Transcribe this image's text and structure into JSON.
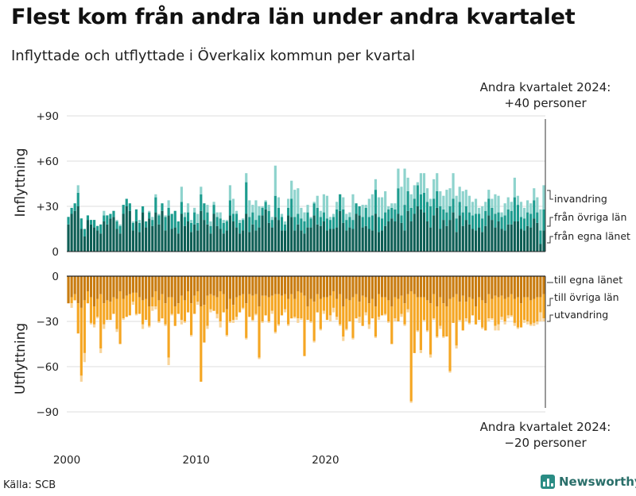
{
  "header": {
    "title": "Flest kom från andra län under andra kvartalet",
    "subtitle": "Inflyttade och utflyttade i Överkalix kommun per kvartal"
  },
  "footer": {
    "source": "Källa: SCB",
    "brand": "Newsworthy"
  },
  "chart_data": {
    "type": "bar",
    "title": "Flest kom från andra län under andra kvartalet",
    "subtitle": "Inflyttade och utflyttade i Överkalix kommun per kvartal",
    "x_tick_labels": [
      "2000",
      "2010",
      "2020"
    ],
    "x_tick_years": [
      2000,
      2010,
      2020
    ],
    "first_year": 2000,
    "quarters_per_year": 4,
    "top_panel": {
      "ylabel": "Inflyttning",
      "ylim": [
        0,
        90
      ],
      "yticks": [
        0,
        30,
        60,
        90
      ],
      "ytick_labels": [
        "0",
        "+30",
        "+60",
        "+90"
      ],
      "annotation_line1": "Andra kvartalet 2024:",
      "annotation_line2": "+40 personer",
      "legend": [
        "invandring",
        "från övriga län",
        "från egna länet"
      ],
      "colors": {
        "egna": "#0e5e55",
        "ovriga": "#1d9c8f",
        "invandring": "#8ed3cd"
      },
      "series": {
        "fran_egna_lanet": [
          18,
          25,
          27,
          30,
          15,
          10,
          21,
          18,
          16,
          14,
          12,
          20,
          18,
          22,
          23,
          15,
          12,
          25,
          30,
          27,
          14,
          20,
          13,
          26,
          16,
          22,
          17,
          26,
          18,
          27,
          14,
          24,
          15,
          16,
          12,
          25,
          17,
          20,
          13,
          18,
          14,
          27,
          21,
          18,
          12,
          25,
          17,
          15,
          12,
          14,
          24,
          20,
          16,
          12,
          14,
          25,
          13,
          18,
          14,
          16,
          24,
          28,
          19,
          16,
          23,
          21,
          14,
          14,
          24,
          23,
          14,
          18,
          14,
          12,
          16,
          16,
          24,
          18,
          17,
          20,
          14,
          15,
          15,
          16,
          27,
          19,
          14,
          16,
          15,
          25,
          24,
          16,
          17,
          15,
          14,
          25,
          13,
          14,
          17,
          20,
          22,
          20,
          25,
          19,
          14,
          27,
          20,
          25,
          30,
          28,
          26,
          20,
          16,
          24,
          29,
          15,
          21,
          17,
          21,
          26,
          13,
          24,
          17,
          21,
          18,
          15,
          14,
          16,
          13,
          17,
          24,
          21,
          16,
          20,
          15,
          14,
          18,
          18,
          20,
          20,
          15,
          14,
          17,
          16,
          22,
          19,
          5,
          14
        ],
        "fran_ovriga_lan": [
          5,
          4,
          5,
          9,
          7,
          5,
          3,
          3,
          5,
          3,
          6,
          4,
          6,
          3,
          4,
          5,
          5,
          6,
          5,
          5,
          5,
          8,
          6,
          4,
          4,
          4,
          4,
          10,
          6,
          5,
          9,
          5,
          10,
          11,
          8,
          8,
          6,
          6,
          6,
          8,
          5,
          11,
          11,
          8,
          5,
          6,
          6,
          7,
          7,
          6,
          10,
          5,
          9,
          7,
          7,
          21,
          10,
          8,
          7,
          8,
          5,
          5,
          8,
          5,
          14,
          8,
          9,
          4,
          5,
          12,
          9,
          7,
          8,
          8,
          10,
          6,
          8,
          11,
          6,
          6,
          8,
          6,
          8,
          12,
          11,
          9,
          7,
          7,
          6,
          7,
          6,
          7,
          12,
          8,
          10,
          16,
          10,
          8,
          9,
          8,
          7,
          8,
          17,
          5,
          17,
          13,
          9,
          10,
          14,
          10,
          13,
          13,
          14,
          11,
          11,
          15,
          7,
          9,
          9,
          9,
          9,
          9,
          9,
          9,
          8,
          9,
          11,
          9,
          9,
          10,
          11,
          8,
          9,
          6,
          8,
          10,
          10,
          9,
          16,
          11,
          8,
          8,
          9,
          9,
          12,
          7,
          9,
          14
        ],
        "invandring": [
          0,
          0,
          0,
          5,
          0,
          0,
          0,
          0,
          0,
          0,
          0,
          3,
          0,
          0,
          0,
          1,
          1,
          0,
          0,
          0,
          1,
          0,
          2,
          0,
          0,
          1,
          2,
          2,
          1,
          0,
          1,
          5,
          0,
          0,
          0,
          10,
          3,
          6,
          2,
          3,
          6,
          5,
          0,
          5,
          3,
          2,
          3,
          4,
          2,
          1,
          10,
          10,
          2,
          2,
          1,
          6,
          11,
          5,
          13,
          6,
          1,
          1,
          4,
          2,
          20,
          7,
          2,
          2,
          6,
          12,
          18,
          17,
          7,
          6,
          5,
          1,
          1,
          8,
          4,
          12,
          15,
          2,
          2,
          5,
          0,
          8,
          4,
          3,
          17,
          0,
          0,
          8,
          2,
          12,
          14,
          7,
          13,
          14,
          14,
          2,
          3,
          4,
          13,
          19,
          24,
          9,
          9,
          9,
          2,
          14,
          13,
          9,
          5,
          13,
          12,
          10,
          9,
          15,
          12,
          17,
          15,
          10,
          14,
          11,
          11,
          9,
          10,
          4,
          8,
          6,
          6,
          6,
          13,
          11,
          3,
          8,
          8,
          6,
          13,
          6,
          10,
          7,
          8,
          7,
          8,
          10,
          14,
          16
        ]
      }
    },
    "bottom_panel": {
      "ylabel": "Utflyttning",
      "ylim": [
        -90,
        0
      ],
      "yticks": [
        0,
        -30,
        -60,
        -90
      ],
      "ytick_labels": [
        "0",
        "−30",
        "−60",
        "−90"
      ],
      "annotation_line1": "Andra kvartalet 2024:",
      "annotation_line2": "−20 personer",
      "legend": [
        "till egna länet",
        "till övriga län",
        "utvandring"
      ],
      "colors": {
        "egna": "#c97c10",
        "ovriga": "#f5a623",
        "utvandring": "#f8d49a"
      },
      "series": {
        "till_egna_lanet": [
          18,
          14,
          12,
          18,
          21,
          16,
          10,
          14,
          20,
          15,
          12,
          18,
          16,
          17,
          14,
          15,
          10,
          15,
          13,
          12,
          11,
          11,
          14,
          16,
          15,
          20,
          14,
          10,
          16,
          12,
          18,
          14,
          14,
          20,
          18,
          13,
          16,
          10,
          18,
          13,
          10,
          20,
          19,
          13,
          12,
          13,
          14,
          10,
          12,
          22,
          15,
          19,
          14,
          13,
          12,
          18,
          12,
          13,
          12,
          20,
          13,
          13,
          14,
          13,
          12,
          12,
          13,
          12,
          15,
          12,
          15,
          10,
          11,
          13,
          20,
          15,
          17,
          12,
          15,
          14,
          14,
          13,
          10,
          15,
          12,
          20,
          15,
          16,
          14,
          12,
          17,
          13,
          14,
          18,
          15,
          20,
          12,
          14,
          14,
          16,
          20,
          14,
          15,
          13,
          18,
          12,
          10,
          12,
          14,
          14,
          14,
          16,
          18,
          12,
          20,
          14,
          18,
          20,
          15,
          14,
          12,
          17,
          13,
          17,
          14,
          15,
          20,
          14,
          16,
          18,
          12,
          15,
          13,
          14,
          13,
          15,
          14,
          12,
          15,
          14,
          18,
          14,
          14,
          16,
          15,
          14,
          14,
          12
        ],
        "till_ovriga_lan": [
          0,
          4,
          4,
          20,
          45,
          35,
          8,
          17,
          12,
          12,
          36,
          14,
          13,
          12,
          11,
          20,
          35,
          13,
          14,
          14,
          6,
          14,
          11,
          16,
          14,
          13,
          6,
          10,
          14,
          16,
          14,
          40,
          11,
          13,
          7,
          16,
          14,
          14,
          21,
          12,
          7,
          50,
          25,
          20,
          10,
          10,
          11,
          20,
          12,
          17,
          15,
          10,
          13,
          11,
          9,
          23,
          15,
          16,
          13,
          34,
          17,
          13,
          16,
          10,
          25,
          20,
          13,
          10,
          17,
          16,
          12,
          18,
          17,
          40,
          9,
          15,
          26,
          12,
          20,
          9,
          15,
          13,
          11,
          12,
          20,
          20,
          20,
          14,
          27,
          16,
          10,
          20,
          10,
          14,
          13,
          20,
          15,
          12,
          11,
          14,
          25,
          14,
          15,
          12,
          14,
          10,
          73,
          39,
          22,
          35,
          15,
          20,
          34,
          16,
          20,
          19,
          22,
          20,
          48,
          17,
          34,
          12,
          23,
          11,
          17,
          11,
          12,
          15,
          18,
          18,
          16,
          13,
          20,
          18,
          14,
          15,
          12,
          14,
          16,
          20,
          16,
          15,
          16,
          16,
          16,
          16,
          10,
          16
        ],
        "utvandring": [
          0,
          3,
          0,
          0,
          4,
          6,
          0,
          1,
          2,
          1,
          3,
          3,
          0,
          0,
          0,
          2,
          0,
          1,
          0,
          0,
          2,
          1,
          0,
          3,
          0,
          1,
          3,
          2,
          1,
          0,
          1,
          5,
          1,
          0,
          0,
          3,
          1,
          0,
          1,
          0,
          2,
          0,
          0,
          2,
          2,
          0,
          3,
          4,
          0,
          1,
          1,
          2,
          2,
          0,
          1,
          1,
          0,
          1,
          1,
          1,
          1,
          0,
          1,
          2,
          1,
          1,
          0,
          2,
          1,
          0,
          1,
          3,
          1,
          0,
          0,
          1,
          1,
          0,
          1,
          2,
          0,
          4,
          3,
          2,
          1,
          3,
          1,
          0,
          1,
          0,
          4,
          0,
          2,
          3,
          0,
          1,
          2,
          0,
          1,
          1,
          0,
          2,
          0,
          2,
          1,
          2,
          1,
          0,
          1,
          2,
          1,
          1,
          2,
          1,
          1,
          2,
          1,
          0,
          1,
          0,
          2,
          1,
          0,
          2,
          1,
          0,
          0,
          0,
          1,
          0,
          2,
          1,
          3,
          4,
          2,
          2,
          2,
          1,
          2,
          1,
          0,
          2,
          2,
          1,
          2,
          2,
          6,
          2
        ]
      }
    }
  }
}
